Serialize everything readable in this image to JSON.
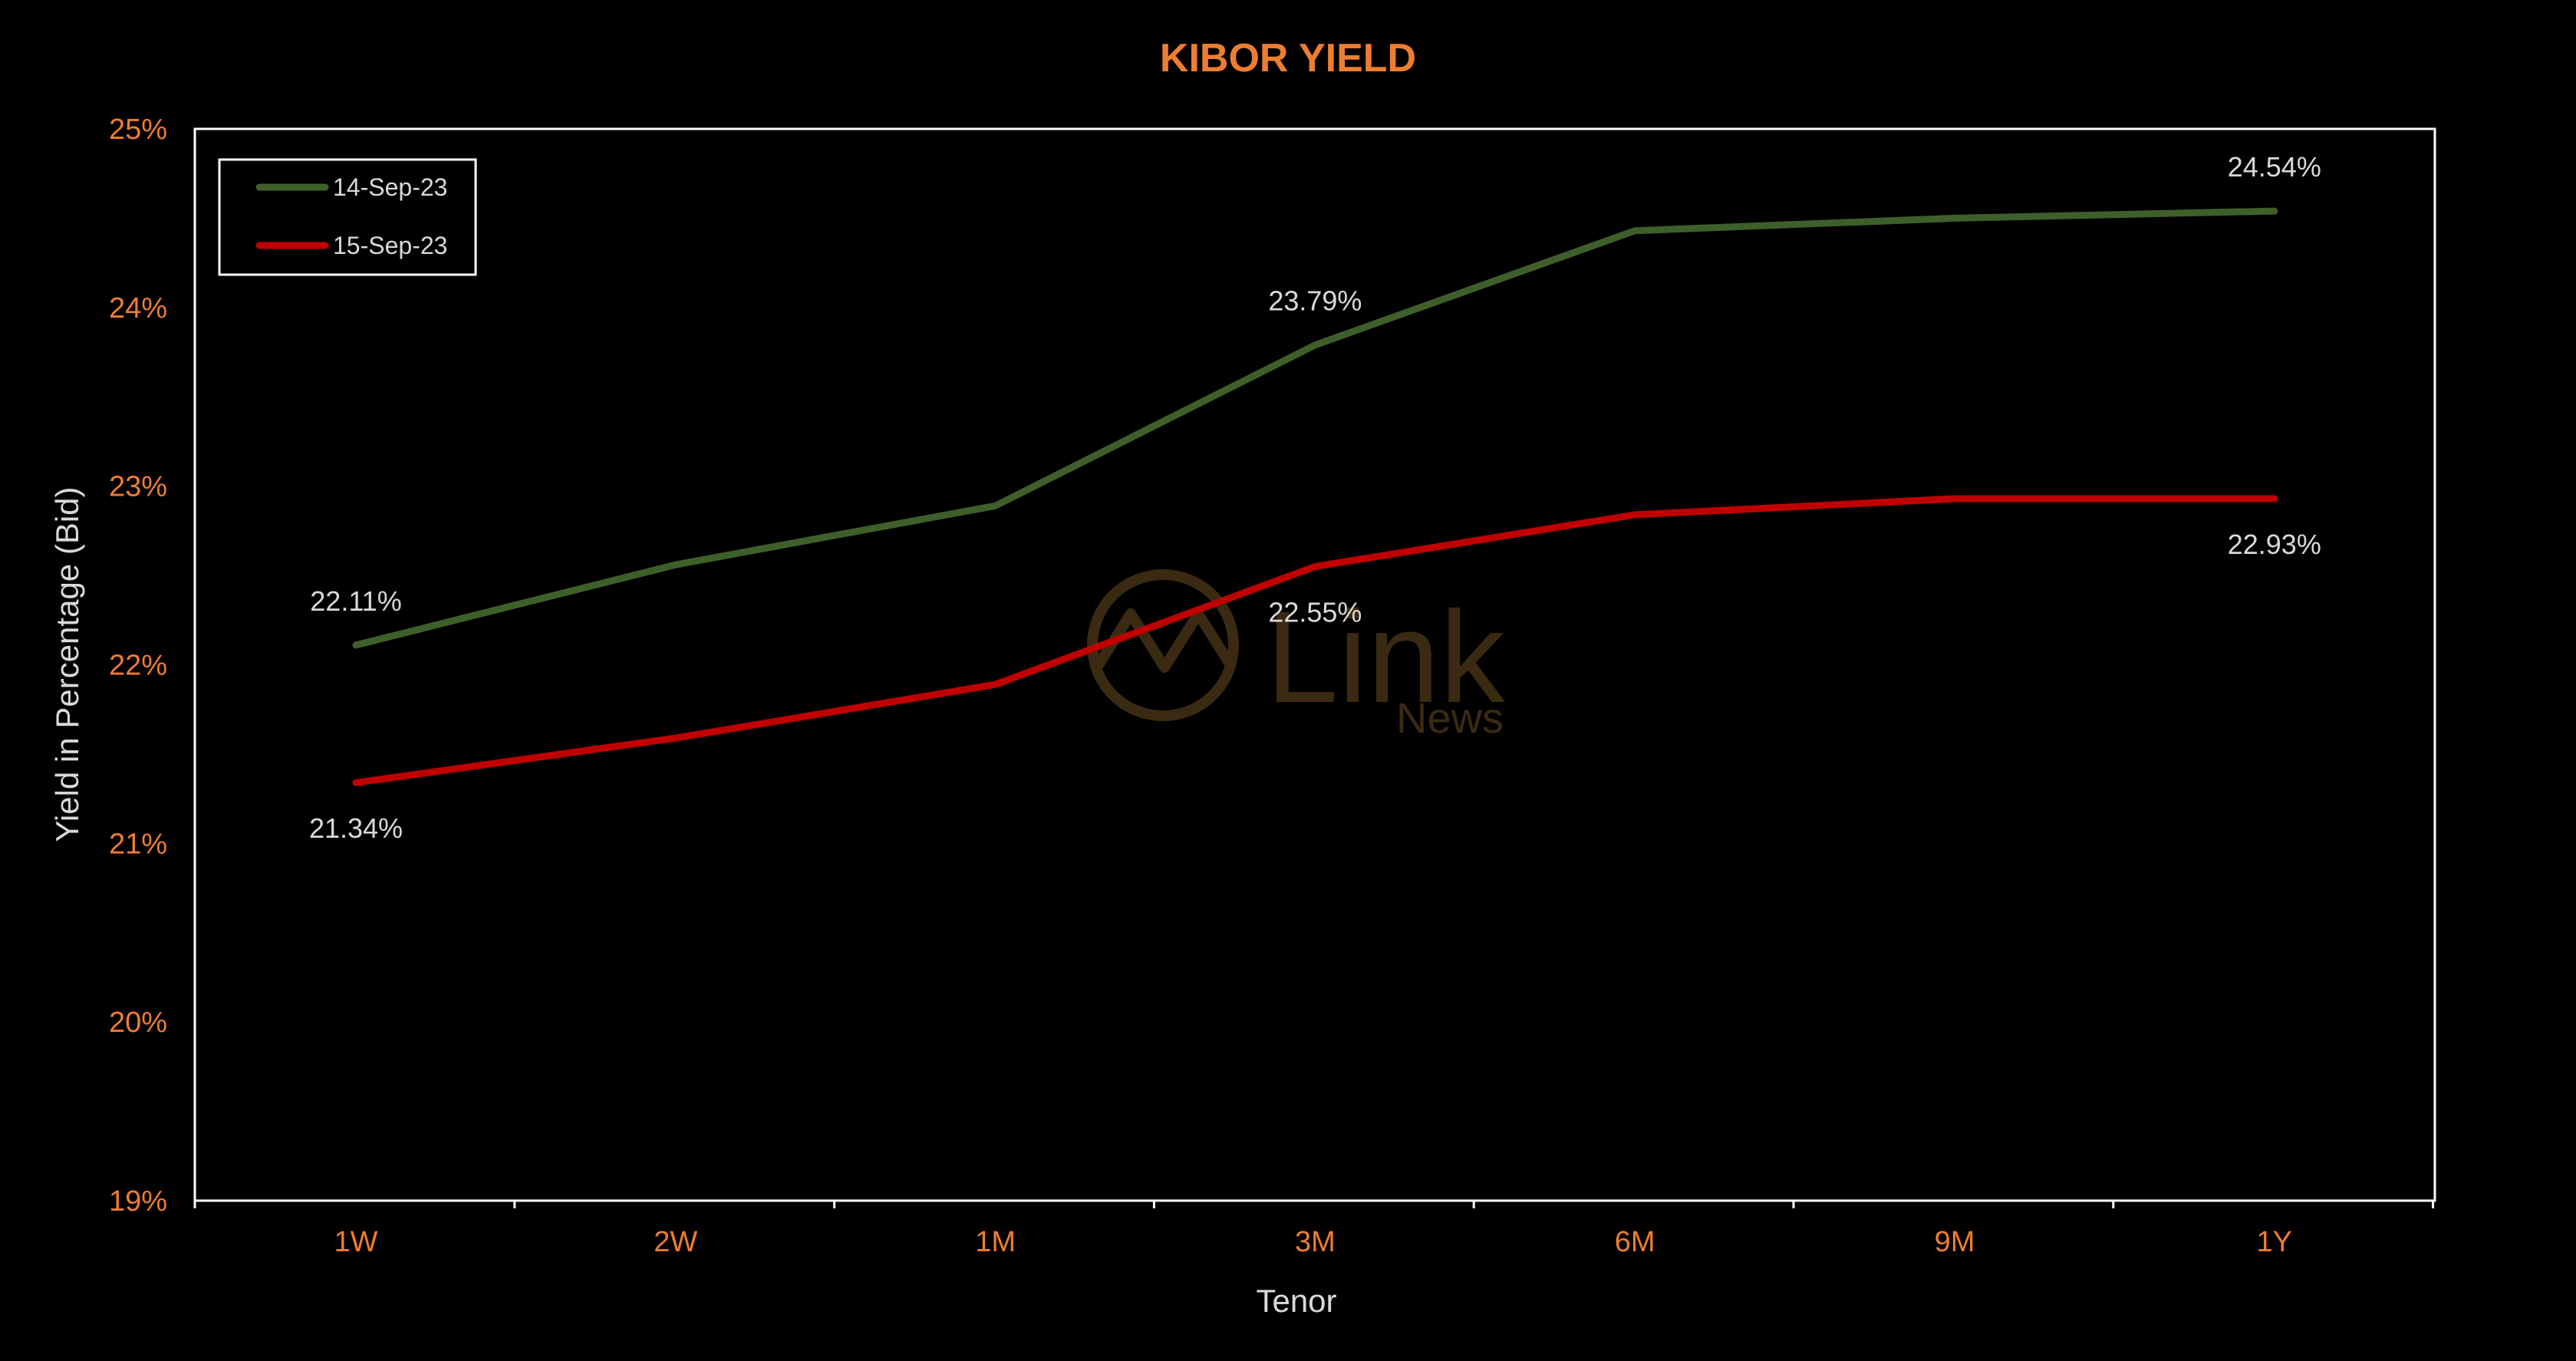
{
  "chart_data": {
    "type": "line",
    "title": "KIBOR YIELD",
    "xlabel": "Tenor",
    "ylabel": "Yield in Percentage (Bid)",
    "categories": [
      "1W",
      "2W",
      "1M",
      "3M",
      "6M",
      "9M",
      "1Y"
    ],
    "y_tick_labels": [
      "19%",
      "20%",
      "21%",
      "22%",
      "23%",
      "24%",
      "25%"
    ],
    "ylim": [
      19,
      25
    ],
    "grid": false,
    "legend_position": "top-left",
    "series": [
      {
        "name": "14-Sep-23",
        "color": "#3f5f2a",
        "values": [
          22.11,
          22.56,
          22.89,
          23.79,
          24.43,
          24.5,
          24.54
        ],
        "data_labels": [
          {
            "index": 0,
            "text": "22.11%",
            "position": "above"
          },
          {
            "index": 3,
            "text": "23.79%",
            "position": "above"
          },
          {
            "index": 6,
            "text": "24.54%",
            "position": "above"
          }
        ]
      },
      {
        "name": "15-Sep-23",
        "color": "#c00000",
        "values": [
          21.34,
          21.59,
          21.89,
          22.55,
          22.84,
          22.93,
          22.93
        ],
        "data_labels": [
          {
            "index": 0,
            "text": "21.34%",
            "position": "below"
          },
          {
            "index": 3,
            "text": "22.55%",
            "position": "below"
          },
          {
            "index": 6,
            "text": "22.93%",
            "position": "below"
          }
        ]
      }
    ]
  },
  "colors": {
    "background": "#000000",
    "title": "#ed7d31",
    "tick_labels": "#ed7d31",
    "axis_titles": "#d9d9d9",
    "data_labels": "#d9d9d9",
    "legend_text": "#d9d9d9",
    "frame": "#ffffff",
    "watermark": "#3a2a12"
  },
  "watermark": {
    "main": "Link",
    "sub": "News",
    "logo_icon": "chart-circle-logo-icon"
  }
}
